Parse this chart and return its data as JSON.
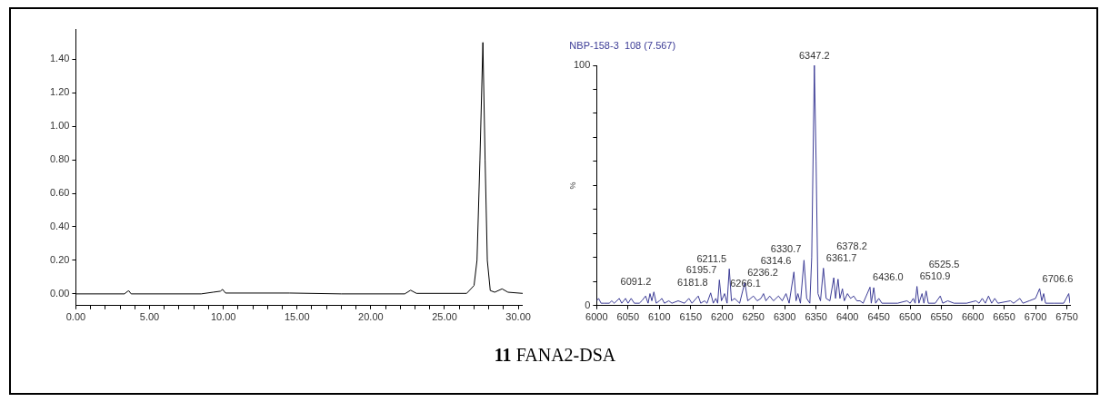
{
  "chart_data": [
    {
      "type": "line",
      "color": "#000000",
      "x": [
        0,
        3.3,
        3.5,
        3.6,
        3.75,
        8.5,
        9.3,
        9.8,
        9.95,
        10.15,
        14.5,
        18,
        22.3,
        22.7,
        23.1,
        26.5,
        27.0,
        27.2,
        27.4,
        27.6,
        27.75,
        27.9,
        28.1,
        28.4,
        28.9,
        29.3,
        30.3
      ],
      "values": [
        0,
        0,
        0.015,
        0.018,
        0,
        0,
        0.01,
        0.016,
        0.027,
        0.005,
        0.005,
        0,
        0,
        0.022,
        0.003,
        0.003,
        0.05,
        0.2,
        0.8,
        1.5,
        0.8,
        0.2,
        0.02,
        0.01,
        0.03,
        0.01,
        0.003
      ],
      "xlim": [
        0,
        30.3
      ],
      "ylim": [
        -0.07,
        1.58
      ],
      "xticks": [
        {
          "value": 0,
          "label": "0.00"
        },
        {
          "value": 1,
          "label": null
        },
        {
          "value": 2,
          "label": null
        },
        {
          "value": 3,
          "label": null
        },
        {
          "value": 4,
          "label": null
        },
        {
          "value": 5,
          "label": "5.00"
        },
        {
          "value": 6,
          "label": null
        },
        {
          "value": 7,
          "label": null
        },
        {
          "value": 8,
          "label": null
        },
        {
          "value": 9,
          "label": null
        },
        {
          "value": 10,
          "label": "10.00"
        },
        {
          "value": 11,
          "label": null
        },
        {
          "value": 12,
          "label": null
        },
        {
          "value": 13,
          "label": null
        },
        {
          "value": 14,
          "label": null
        },
        {
          "value": 15,
          "label": "15.00"
        },
        {
          "value": 16,
          "label": null
        },
        {
          "value": 17,
          "label": null
        },
        {
          "value": 18,
          "label": null
        },
        {
          "value": 19,
          "label": null
        },
        {
          "value": 20,
          "label": "20.00"
        },
        {
          "value": 21,
          "label": null
        },
        {
          "value": 22,
          "label": null
        },
        {
          "value": 23,
          "label": null
        },
        {
          "value": 24,
          "label": null
        },
        {
          "value": 25,
          "label": "25.00"
        },
        {
          "value": 26,
          "label": null
        },
        {
          "value": 27,
          "label": null
        },
        {
          "value": 28,
          "label": null
        },
        {
          "value": 29,
          "label": null
        },
        {
          "value": 30,
          "label": "30.00"
        }
      ],
      "yticks": [
        {
          "value": 0,
          "label": "0.00"
        },
        {
          "value": 0.2,
          "label": "0.20"
        },
        {
          "value": 0.4,
          "label": "0.40"
        },
        {
          "value": 0.6,
          "label": "0.60"
        },
        {
          "value": 0.8,
          "label": "0.80"
        },
        {
          "value": 1.0,
          "label": "1.00"
        },
        {
          "value": 1.2,
          "label": "1.20"
        },
        {
          "value": 1.4,
          "label": "1.40"
        }
      ],
      "grid": false,
      "legend": false,
      "marker": "none",
      "line_style": "solid",
      "annotations": [
        "11 FANA2-DSA"
      ]
    },
    {
      "type": "line",
      "color": "#3c3c96",
      "ylabel": "%",
      "legend": false,
      "grid": false,
      "marker": "none",
      "line_style": "solid",
      "x": [
        6000,
        6003,
        6007,
        6012,
        6020,
        6024,
        6028,
        6036,
        6040,
        6046,
        6050,
        6055,
        6060,
        6068,
        6072,
        6078,
        6082,
        6085,
        6088,
        6091.2,
        6095,
        6100,
        6104,
        6108,
        6115,
        6120,
        6130,
        6140,
        6147,
        6152,
        6162,
        6166,
        6172,
        6176,
        6181.8,
        6186,
        6190,
        6193,
        6195.7,
        6199,
        6204,
        6208,
        6211.5,
        6215,
        6220,
        6228,
        6236.2,
        6241,
        6250,
        6256,
        6262,
        6266.1,
        6270,
        6276,
        6282,
        6290,
        6296,
        6302,
        6307,
        6314.6,
        6318,
        6321,
        6325,
        6330.7,
        6335,
        6340,
        6343,
        6347.2,
        6350,
        6353,
        6357,
        6361.7,
        6366,
        6372,
        6378.2,
        6381,
        6385,
        6388,
        6392,
        6395,
        6400,
        6405,
        6410,
        6415,
        6420,
        6425,
        6436,
        6438,
        6442,
        6445,
        6450,
        6455,
        6480,
        6495,
        6500,
        6505,
        6508,
        6510.9,
        6514,
        6519,
        6522,
        6525.5,
        6529,
        6540,
        6548,
        6552,
        6560,
        6570,
        6590,
        6605,
        6610,
        6615,
        6620,
        6625,
        6630,
        6635,
        6640,
        6660,
        6665,
        6675,
        6680,
        6690,
        6700,
        6706.6,
        6710,
        6713,
        6716,
        6730,
        6745,
        6753,
        6755
      ],
      "values": [
        2,
        3,
        1,
        1,
        1,
        2,
        1,
        3,
        1,
        3,
        1,
        3,
        1,
        1,
        2,
        4,
        1,
        5,
        2,
        5.7,
        1,
        2,
        3,
        1,
        2,
        1,
        2,
        1,
        3,
        1,
        4,
        1,
        2,
        1,
        5.3,
        1,
        3,
        1,
        10.7,
        2,
        5,
        1,
        15.3,
        2,
        3,
        1,
        9.6,
        2,
        4,
        2,
        3,
        5,
        2,
        4,
        2,
        4,
        2,
        5,
        1,
        14,
        2,
        5,
        1,
        18.9,
        3,
        1,
        20,
        100,
        60,
        5,
        2,
        15.6,
        3,
        2,
        11.6,
        3,
        11,
        3,
        7,
        2,
        5,
        3,
        4,
        2,
        2,
        1,
        7.7,
        1,
        7.5,
        1,
        3,
        1,
        1,
        2,
        1,
        3,
        1,
        8,
        1,
        5,
        1,
        6.1,
        1,
        1,
        4,
        1,
        2,
        1,
        1,
        2,
        1,
        3,
        1,
        4,
        1,
        3,
        1,
        2,
        1,
        3,
        1,
        2,
        3,
        7.1,
        2,
        5,
        1,
        1,
        1,
        5,
        1
      ],
      "xlim": [
        6000,
        6755
      ],
      "ylim": [
        0,
        100
      ],
      "xticks": [
        6000,
        6050,
        6100,
        6150,
        6200,
        6250,
        6300,
        6350,
        6400,
        6450,
        6500,
        6550,
        6600,
        6650,
        6700,
        6750
      ],
      "yticks": [
        0,
        {
          "value": 10,
          "label": null
        },
        {
          "value": 20,
          "label": null
        },
        {
          "value": 30,
          "label": null
        },
        {
          "value": 40,
          "label": null
        },
        {
          "value": 50,
          "label": null
        },
        {
          "value": 60,
          "label": null
        },
        {
          "value": 70,
          "label": null
        },
        {
          "value": 80,
          "label": null
        },
        {
          "value": 90,
          "label": null
        },
        100
      ],
      "annotations": [
        "NBP-158-3  108 (7.567)",
        {
          "text": "6091.2",
          "x": 6091.2,
          "y": 5.7
        },
        {
          "text": "6181.8",
          "x": 6181.8,
          "y": 5.3
        },
        {
          "text": "6195.7",
          "x": 6195.7,
          "y": 10.7
        },
        {
          "text": "6211.5",
          "x": 6211.5,
          "y": 15.3
        },
        {
          "text": "6236.2",
          "x": 6236.2,
          "y": 9.6
        },
        {
          "text": "6266.1",
          "x": 6266.1,
          "y": 5
        },
        {
          "text": "6314.6",
          "x": 6314.6,
          "y": 14
        },
        {
          "text": "6330.7",
          "x": 6330.7,
          "y": 18.9
        },
        {
          "text": "6347.2",
          "x": 6347.2,
          "y": 100
        },
        {
          "text": "6361.7",
          "x": 6361.7,
          "y": 15.6
        },
        {
          "text": "6378.2",
          "x": 6378.2,
          "y": 11.6
        },
        {
          "text": "6436.0",
          "x": 6436,
          "y": 7.7
        },
        {
          "text": "6510.9",
          "x": 6510.9,
          "y": 8
        },
        {
          "text": "6525.5",
          "x": 6525.5,
          "y": 6.1
        },
        {
          "text": "6706.6",
          "x": 6706.6,
          "y": 7.1
        }
      ]
    }
  ]
}
